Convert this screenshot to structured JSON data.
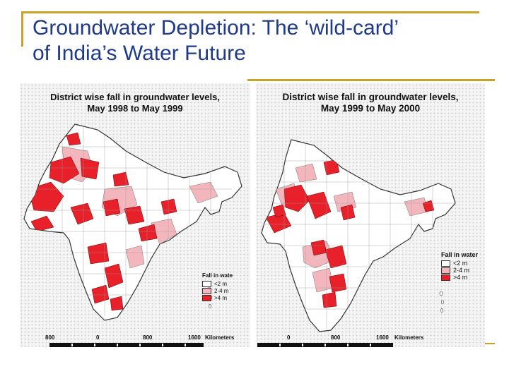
{
  "slide": {
    "title_line1": "Groundwater Depletion: The ‘wild-card’",
    "title_line2": "of India’s Water Future",
    "title_color": "#1f3a8a",
    "accent_color": "#c9a227"
  },
  "maps": [
    {
      "title_line1": "District wise fall in groundwater levels,",
      "title_line2": "May 1998 to May 1999",
      "legend": {
        "title": "Fall in wate",
        "items": [
          {
            "label": "<2 m",
            "color": "#ffffff"
          },
          {
            "label": "2-4 m",
            "color": "#f4b6bd"
          },
          {
            "label": ">4 m",
            "color": "#e8202a"
          }
        ]
      },
      "scale": {
        "left": "800",
        "zero": "0",
        "mid": "800",
        "right": "1600",
        "unit": "Kilometers"
      }
    },
    {
      "title_line1": "District wise fall in groundwater levels,",
      "title_line2": "May 1999 to May 2000",
      "legend": {
        "title": "Fall in water",
        "items": [
          {
            "label": "<2 m",
            "color": "#ffffff"
          },
          {
            "label": "2-4 m",
            "color": "#f4b6bd"
          },
          {
            "label": ">4 m",
            "color": "#e8202a"
          }
        ]
      },
      "scale": {
        "left": "",
        "zero": "0",
        "mid": "800",
        "right": "1600",
        "unit": "Kilometers"
      }
    }
  ]
}
